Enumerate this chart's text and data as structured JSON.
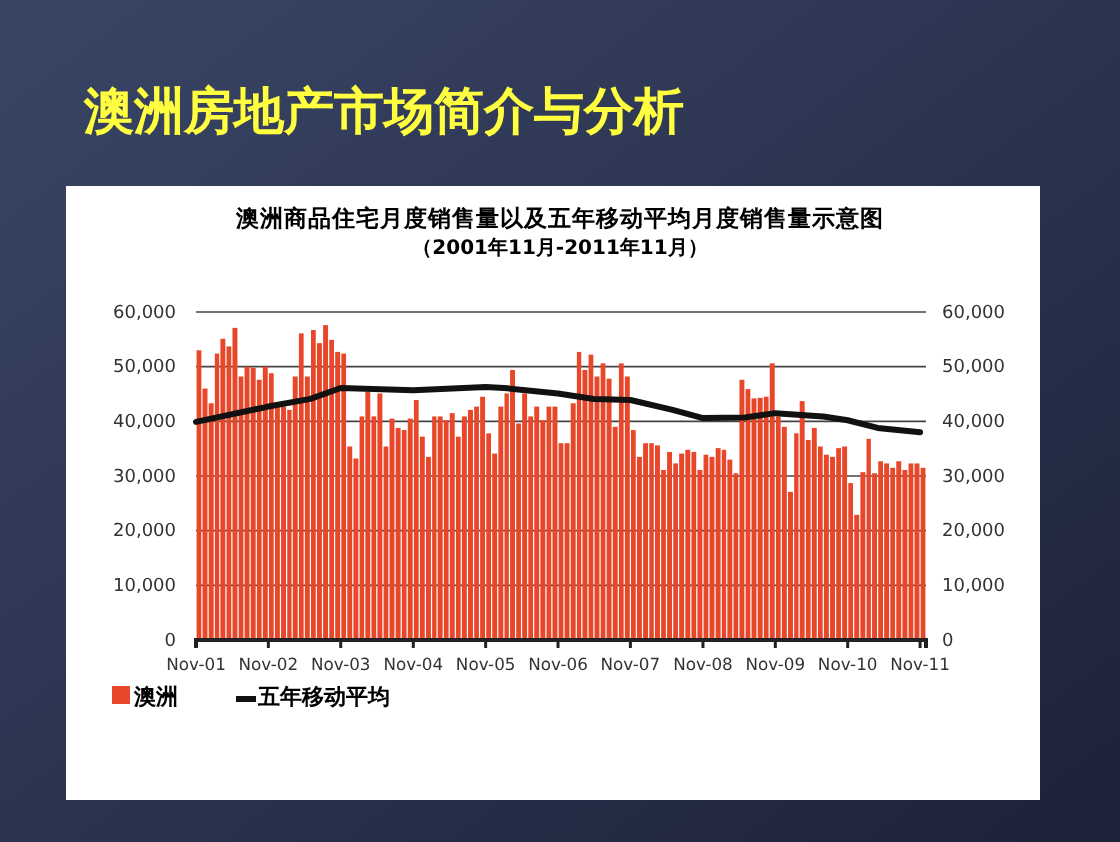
{
  "chart_data": {
    "type": "bar",
    "title": "澳洲房地产市场简介与分析",
    "subtitle": "澳洲商品住宅月度销售量以及五年移动平均月度销售量示意图",
    "annotations": [
      "（2001年11月-2011年11月）"
    ],
    "x": [
      "2001-11",
      "2001-12",
      "2002-01",
      "2002-02",
      "2002-03",
      "2002-04",
      "2002-05",
      "2002-06",
      "2002-07",
      "2002-08",
      "2002-09",
      "2002-10",
      "2002-11",
      "2002-12",
      "2003-01",
      "2003-02",
      "2003-03",
      "2003-04",
      "2003-05",
      "2003-06",
      "2003-07",
      "2003-08",
      "2003-09",
      "2003-10",
      "2003-11",
      "2003-12",
      "2004-01",
      "2004-02",
      "2004-03",
      "2004-04",
      "2004-05",
      "2004-06",
      "2004-07",
      "2004-08",
      "2004-09",
      "2004-10",
      "2004-11",
      "2004-12",
      "2005-01",
      "2005-02",
      "2005-03",
      "2005-04",
      "2005-05",
      "2005-06",
      "2005-07",
      "2005-08",
      "2005-09",
      "2005-10",
      "2005-11",
      "2005-12",
      "2006-01",
      "2006-02",
      "2006-03",
      "2006-04",
      "2006-05",
      "2006-06",
      "2006-07",
      "2006-08",
      "2006-09",
      "2006-10",
      "2006-11",
      "2006-12",
      "2007-01",
      "2007-02",
      "2007-03",
      "2007-04",
      "2007-05",
      "2007-06",
      "2007-07",
      "2007-08",
      "2007-09",
      "2007-10",
      "2007-11",
      "2007-12",
      "2008-01",
      "2008-02",
      "2008-03",
      "2008-04",
      "2008-05",
      "2008-06",
      "2008-07",
      "2008-08",
      "2008-09",
      "2008-10",
      "2008-11",
      "2008-12",
      "2009-01",
      "2009-02",
      "2009-03",
      "2009-04",
      "2009-05",
      "2009-06",
      "2009-07",
      "2009-08",
      "2009-09",
      "2009-10",
      "2009-11",
      "2009-12",
      "2010-01",
      "2010-02",
      "2010-03",
      "2010-04",
      "2010-05",
      "2010-06",
      "2010-07",
      "2010-08",
      "2010-09",
      "2010-10",
      "2010-11",
      "2010-12",
      "2011-01",
      "2011-02",
      "2011-03",
      "2011-04",
      "2011-05",
      "2011-06",
      "2011-07",
      "2011-08",
      "2011-09",
      "2011-10",
      "2011-11"
    ],
    "series": [
      {
        "name": "澳洲",
        "color": "#e8472a",
        "values": [
          53000,
          46000,
          43300,
          52400,
          55100,
          53700,
          57100,
          48200,
          50000,
          49800,
          47600,
          50000,
          48800,
          42700,
          42700,
          42100,
          48200,
          56100,
          48200,
          56700,
          54300,
          57600,
          54900,
          52700,
          52400,
          35400,
          33200,
          40900,
          45400,
          40900,
          45100,
          35400,
          40500,
          38800,
          38400,
          40500,
          43900,
          37200,
          33500,
          40900,
          40900,
          40200,
          41500,
          37200,
          40900,
          42100,
          42700,
          44500,
          37800,
          34100,
          42700,
          45100,
          49400,
          39600,
          45100,
          40900,
          42700,
          40200,
          42700,
          42700,
          36000,
          36000,
          43300,
          52700,
          49400,
          52200,
          48200,
          50600,
          47800,
          39000,
          50600,
          48200,
          38400,
          33500,
          36000,
          36000,
          35600,
          31100,
          34400,
          32300,
          34100,
          34800,
          34400,
          31100,
          33900,
          33500,
          35100,
          34800,
          33000,
          30500,
          47600,
          45900,
          44200,
          44300,
          44500,
          50600,
          40900,
          39000,
          27100,
          37800,
          43700,
          36600,
          38800,
          35400,
          33900,
          33500,
          35100,
          35400,
          28700,
          22900,
          30700,
          36800,
          30500,
          32700,
          32300,
          31500,
          32700,
          31100,
          32300,
          32300,
          31500
        ]
      },
      {
        "name": "五年移动平均",
        "type": "line",
        "color": "#111111",
        "x": [
          "2001-11",
          "2002-11",
          "2003-06",
          "2003-11",
          "2004-11",
          "2005-11",
          "2006-02",
          "2006-11",
          "2007-05",
          "2007-11",
          "2008-06",
          "2008-11",
          "2009-06",
          "2009-11",
          "2010-07",
          "2010-11",
          "2011-04",
          "2011-11"
        ],
        "values": [
          39900,
          42700,
          44100,
          46100,
          45700,
          46300,
          46100,
          45100,
          44100,
          43900,
          42100,
          40600,
          40700,
          41500,
          40900,
          40200,
          38800,
          38000
        ]
      }
    ],
    "xlim": [
      "2001-11",
      "2011-12"
    ],
    "xticks": [
      {
        "value": "2001-11",
        "label": "Nov-01"
      },
      {
        "value": "2002-11",
        "label": "Nov-02"
      },
      {
        "value": "2003-11",
        "label": "Nov-03"
      },
      {
        "value": "2004-11",
        "label": "Nov-04"
      },
      {
        "value": "2005-11",
        "label": "Nov-05"
      },
      {
        "value": "2006-11",
        "label": "Nov-06"
      },
      {
        "value": "2007-11",
        "label": "Nov-07"
      },
      {
        "value": "2008-11",
        "label": "Nov-08"
      },
      {
        "value": "2009-11",
        "label": "Nov-09"
      },
      {
        "value": "2010-11",
        "label": "Nov-10"
      },
      {
        "value": "2011-11",
        "label": "Nov-11"
      }
    ],
    "ylim": [
      0,
      60000
    ],
    "yticks": [
      0,
      {
        "value": 10000,
        "label": "10,000"
      },
      {
        "value": 20000,
        "label": "20,000"
      },
      {
        "value": 30000,
        "label": "30,000"
      },
      {
        "value": 40000,
        "label": "40,000"
      },
      {
        "value": 50000,
        "label": "50,000"
      },
      {
        "value": 60000,
        "label": "60,000"
      }
    ],
    "y2lim": [
      0,
      60000
    ],
    "y2ticks": [
      0,
      {
        "value": 10000,
        "label": "10,000"
      },
      {
        "value": 20000,
        "label": "20,000"
      },
      {
        "value": 30000,
        "label": "30,000"
      },
      {
        "value": 40000,
        "label": "40,000"
      },
      {
        "value": 50000,
        "label": "50,000"
      },
      {
        "value": 60000,
        "label": "60,000"
      }
    ],
    "grid": "y",
    "legend": "bottom left"
  }
}
